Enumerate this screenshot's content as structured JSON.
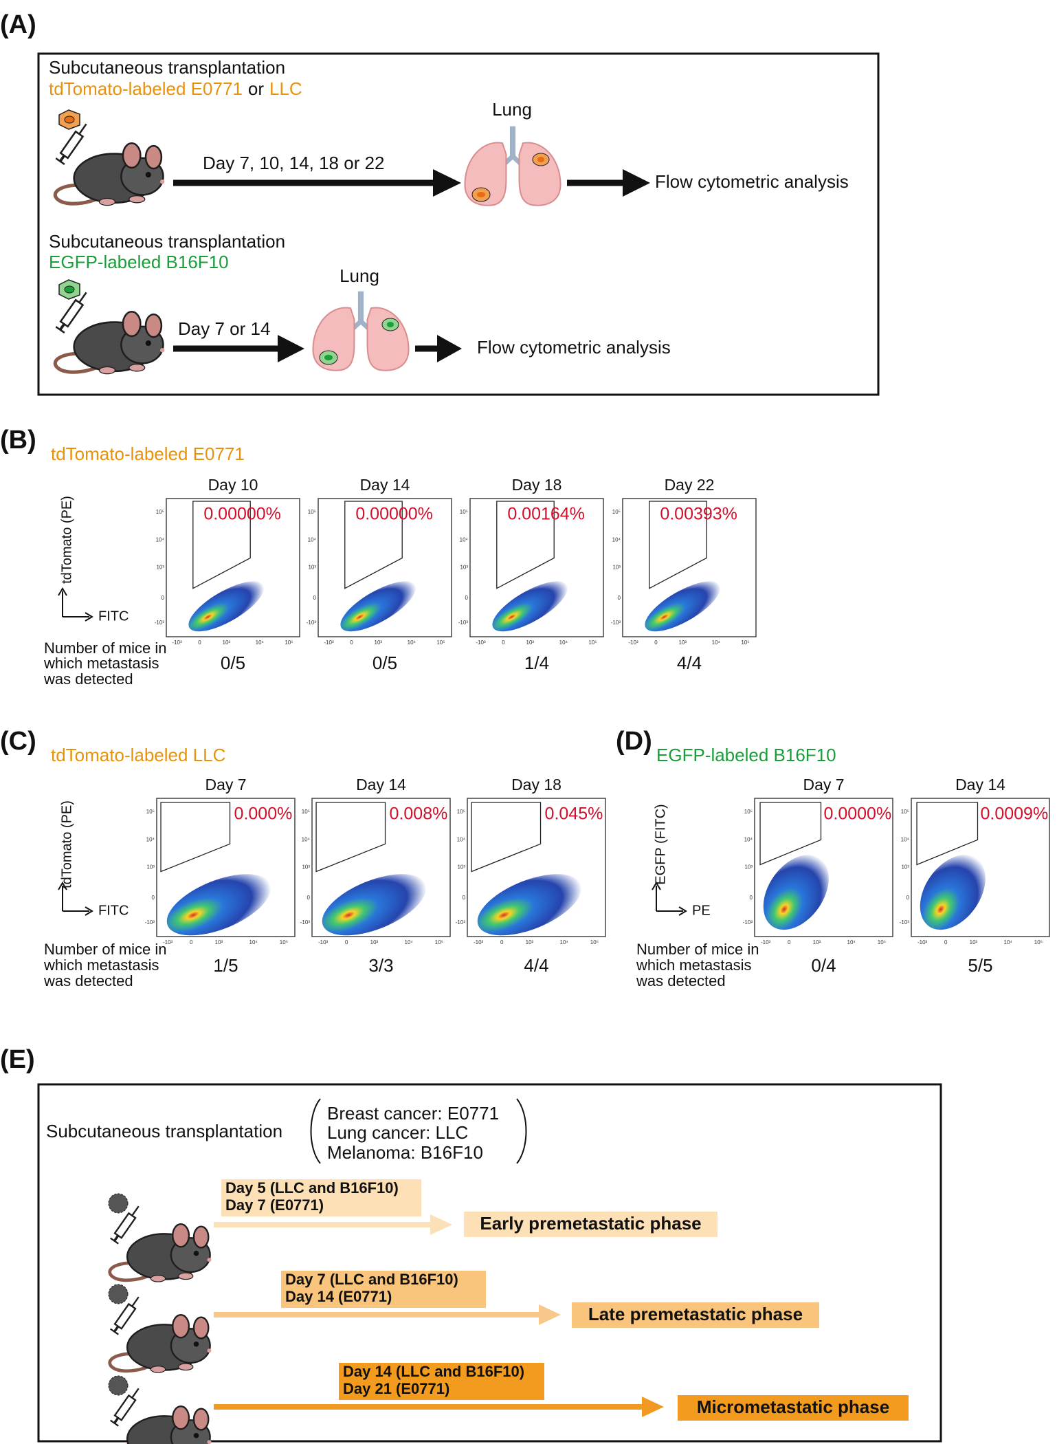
{
  "panel_a": {
    "label": "(A)",
    "top": {
      "heading": "Subcutaneous transplantation",
      "cell_line_1": "tdTomato-labeled E0771",
      "joiner": "or",
      "cell_line_2": "LLC",
      "timing": "Day 7, 10, 14, 18 or 22",
      "organ": "Lung",
      "analysis": "Flow cytometric analysis"
    },
    "bottom": {
      "heading": "Subcutaneous transplantation",
      "cell_line": "EGFP-labeled B16F10",
      "timing": "Day 7 or 14",
      "organ": "Lung",
      "analysis": "Flow cytometric analysis"
    }
  },
  "flow_ticks": {
    "y": [
      "10⁵",
      "10⁴",
      "10³",
      "0",
      "-10³"
    ],
    "x": [
      "-10³",
      "0",
      "10³",
      "10⁴",
      "10⁵"
    ]
  },
  "panel_b": {
    "label": "(B)",
    "title": "tdTomato-labeled E0771",
    "y_axis": "tdTomato (PE)",
    "x_axis": "FITC",
    "row_label": [
      "Number of mice in",
      "which metastasis",
      "was detected"
    ],
    "plots": [
      {
        "day": "Day 10",
        "gate": "0.00000%",
        "mice": "0/5"
      },
      {
        "day": "Day 14",
        "gate": "0.00000%",
        "mice": "0/5"
      },
      {
        "day": "Day 18",
        "gate": "0.00164%",
        "mice": "1/4"
      },
      {
        "day": "Day 22",
        "gate": "0.00393%",
        "mice": "4/4"
      }
    ]
  },
  "panel_c": {
    "label": "(C)",
    "title": "tdTomato-labeled LLC",
    "y_axis": "tdTomato (PE)",
    "x_axis": "FITC",
    "row_label": [
      "Number of mice in",
      "which metastasis",
      "was detected"
    ],
    "plots": [
      {
        "day": "Day 7",
        "gate": "0.000%",
        "mice": "1/5"
      },
      {
        "day": "Day 14",
        "gate": "0.008%",
        "mice": "3/3"
      },
      {
        "day": "Day 18",
        "gate": "0.045%",
        "mice": "4/4"
      }
    ]
  },
  "panel_d": {
    "label": "(D)",
    "title": "EGFP-labeled B16F10",
    "y_axis": "EGFP (FITC)",
    "x_axis": "PE",
    "row_label": [
      "Number of mice in",
      "which metastasis",
      "was detected"
    ],
    "plots": [
      {
        "day": "Day 7",
        "gate": "0.0000%",
        "mice": "0/4"
      },
      {
        "day": "Day 14",
        "gate": "0.0009%",
        "mice": "5/5"
      }
    ]
  },
  "panel_e": {
    "label": "(E)",
    "heading": "Subcutaneous transplantation",
    "models": [
      "Breast cancer: E0771",
      "Lung cancer: LLC",
      "Melanoma: B16F10"
    ],
    "phases": [
      {
        "timing": [
          "Day 5 (LLC and B16F10)",
          "Day 7 (E0771)"
        ],
        "name": "Early premetastatic phase"
      },
      {
        "timing": [
          "Day 7 (LLC and B16F10)",
          "Day 14 (E0771)"
        ],
        "name": "Late premetastatic phase"
      },
      {
        "timing": [
          "Day 14 (LLC and B16F10)",
          "Day 21 (E0771)"
        ],
        "name": "Micrometastatic phase"
      }
    ]
  }
}
